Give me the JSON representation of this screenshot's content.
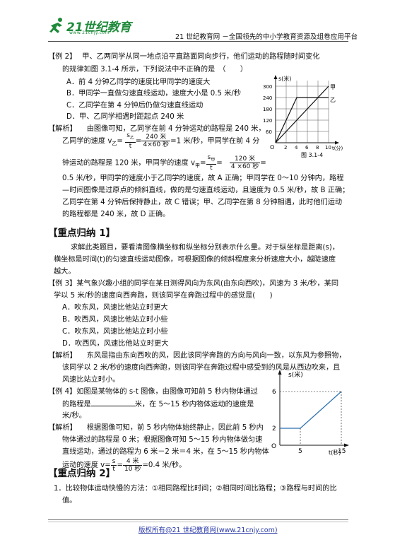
{
  "header": {
    "logo_text": "21世纪教育",
    "logo_sub": "www.21cnjy.com",
    "site_tagline": "21 世纪教育网 －全国领先的中小学教育资源及组卷应用平台"
  },
  "ex2": {
    "label": "【例 2】",
    "stem1": "甲、乙两同学从同一地点沿平直路面同向步行，他们运动的路程随时间变化",
    "stem2": "的规律如图 3.1-4 所示，下列说法中不正确的是　（　　）",
    "options": [
      "A．前 4 分钟乙同学的速度比甲同学的速度大",
      "B．甲同学一直做匀速直线运动，速度大小是 0.5 米/秒",
      "C．乙同学在第 4 分钟后仍做匀速直线运动",
      "D．甲、乙同学相遇时距起点 240 米"
    ],
    "analysis_label": "【解析】",
    "a1": "由图像可知，乙同学在前 4 分钟运动的路程是 240 米，",
    "a2_pre": "乙同学的速度 v",
    "a2_sub": "乙",
    "a2_eq": "=",
    "f1n": "s",
    "f1n_sub": "乙",
    "f1d": "t",
    "f2n": "240 米",
    "f2d": "4×60 秒",
    "a2_post": "=1 米/秒，甲同学在前 4 分",
    "a3_pre": "钟运动的路程是 120 米，甲同学的速度 v",
    "a3_sub": "甲",
    "f3n": "s",
    "f3n_sub": "甲",
    "f3d": "t",
    "f4n": "120 米",
    "f4d": "4 ×60 秒",
    "a4": "0.5 米/秒，甲同学的速度小于乙同学的速度，故 A 正确；甲同学在 0～10 分钟内，路程",
    "a5": "—时间图像是过原点的倾斜直线，做的是匀速直线运动，且速度为 0.5 米/秒，故 B 正确；",
    "a6": "乙同学在第 4 分钟后保持静止，故 C 错误；甲、乙同学在第 8 分钟相遇，此时他们运动",
    "a7": "的路程都是 240 米，故 D 正确。"
  },
  "fig1": {
    "ylabel": "s(米)",
    "xlabel": "t(分)",
    "yticks": [
      "300",
      "240",
      "180",
      "120",
      "60"
    ],
    "xticks": [
      "2",
      "4",
      "6",
      "8",
      "10"
    ],
    "origin": "O",
    "label_jia": "甲",
    "label_yi": "乙",
    "caption": "图 3.1-4"
  },
  "sec1": {
    "title": "【重点归纳 1】",
    "p1": "求解此类题目，要看清图像横坐标和纵坐标分别表示什么量。对于纵坐标是距离(s)，",
    "p2": "横坐标是时间(t)的匀速直线运动图像，可根据图像的倾斜程度来分析速度大小，越陡速度",
    "p3": "越大。"
  },
  "ex3": {
    "label": "【例 3】",
    "stem1": "某气象兴趣小组的同学在某日测得风向为东风(由东向西吹)，风速为 3 米/秒，某同",
    "stem2": "学以 5 米/秒的速度向西奔跑，则该同学在奔跑过程中的感觉是(　　)",
    "options": [
      "A．吹东风，风速比他站立时更大",
      "B．吹西风，风速比他站立时小些",
      "C．吹东风，风速比他站立时小些",
      "D．吹西风，风速比他站立时更大"
    ],
    "analysis_label": "【解析】",
    "a1": "东风是指由东向西吹的风，因此该同学奔跑的方向与风向一致，以东风为参照物，",
    "a2": "该同学以 2 米/秒的速度向西奔跑，则该同学在奔跑过程中感受到的风是从西边吹来，且",
    "a3": "风速比站立时小。"
  },
  "ex4": {
    "label": "【例 4】",
    "stem1": "如图是某物体的 s-t 图像，由图像可知前 5 秒内物体通过",
    "stem2_pre": "的路程是",
    "stem2_post": "米，在 5～15 秒内物体运动的速度是",
    "stem3": "米/秒。",
    "analysis_label": "【解析】",
    "a1": "根据图像可知，前 5 秒内物体始终静止，因此前 5 秒内",
    "a2": "物体通过的路程是 0 米；根据图像可知 5～15 秒内物体做匀速",
    "a3": "直线运动，通过的路程为 6 米－2 米＝4 米，在 5～15 秒内物体",
    "a4_pre": "运动的速度 v=",
    "f1n": "s",
    "f1d": "t",
    "f2n": "4 米",
    "f2d": "10 秒",
    "a4_post": "=0.4 米/秒。"
  },
  "fig2": {
    "ylabel": "s(米)",
    "xlabel": "t(秒)",
    "origin": "O",
    "yticks": [
      "6",
      "2"
    ],
    "xticks": [
      "5",
      "15"
    ]
  },
  "sec2": {
    "title": "【重点归纳 2】",
    "p1": "1．比较物体运动快慢的方法：①相同路程比时间；②相同时间比路程；③路程与时间的比",
    "p2": "值。"
  },
  "footer": {
    "text": "版权所有@21 世纪教育网(www.21cnjy.com)"
  }
}
